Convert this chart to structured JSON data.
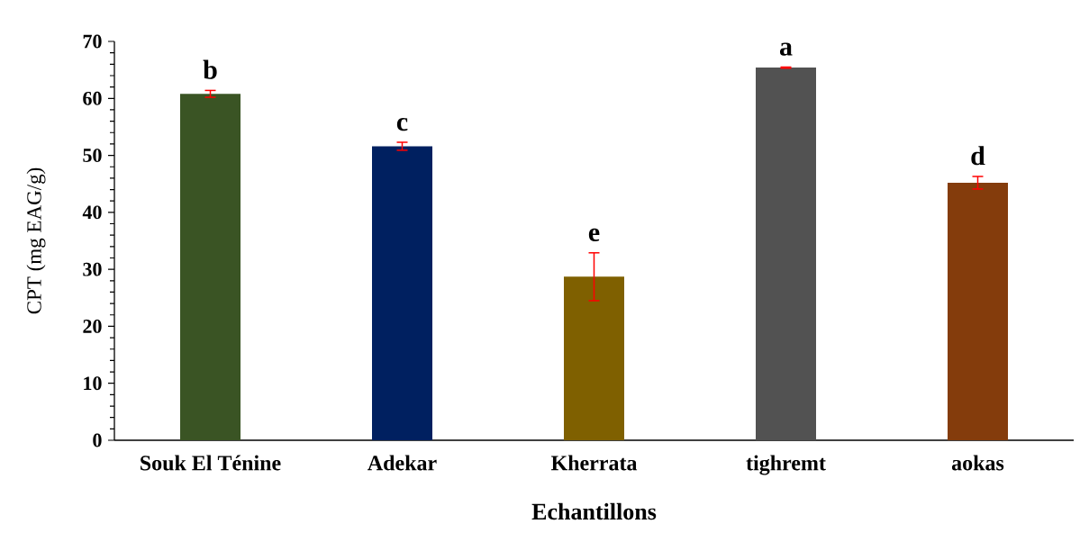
{
  "chart_data": {
    "type": "bar",
    "categories": [
      "Souk El Ténine",
      "Adekar",
      "Kherrata",
      "tighremt",
      "aokas"
    ],
    "values": [
      60.8,
      51.6,
      28.7,
      65.4,
      45.2
    ],
    "errors": [
      0.6,
      0.7,
      4.2,
      0.1,
      1.1
    ],
    "colors": [
      "#3a5424",
      "#002060",
      "#7f6000",
      "#525252",
      "#843c0c"
    ],
    "xlabel": "Echantillons",
    "ylabel": "CPT (mg EAG/g)",
    "ylim": [
      0,
      70
    ],
    "yticks": [
      0,
      10,
      20,
      30,
      40,
      50,
      60,
      70
    ],
    "annotations": [
      "b",
      "c",
      "e",
      "a",
      "d"
    ]
  }
}
